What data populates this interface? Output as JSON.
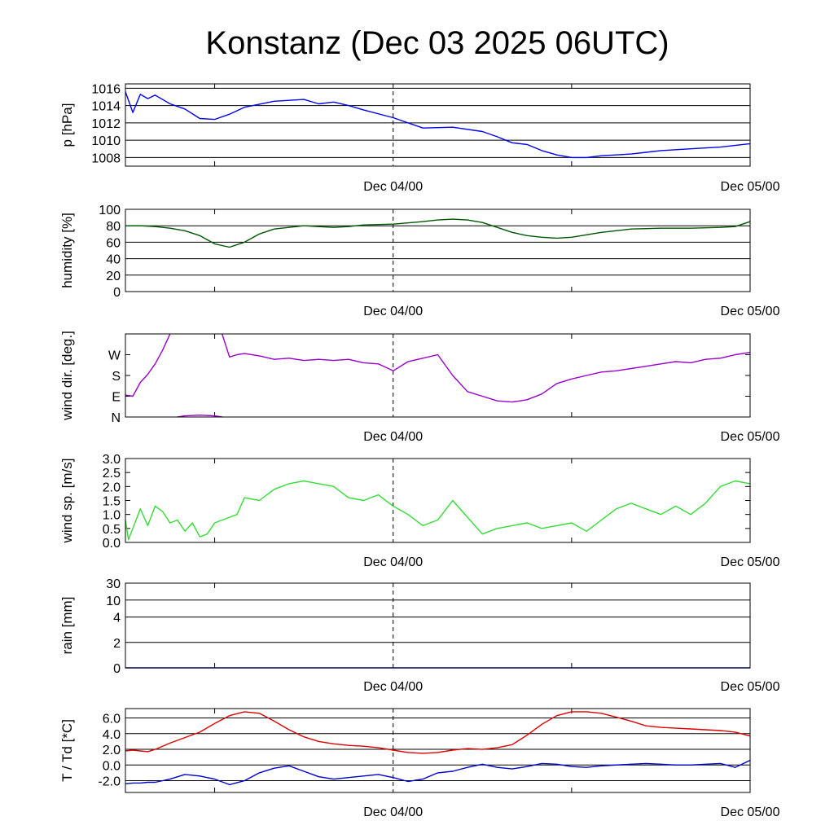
{
  "title": "Konstanz (Dec 03 2025 06UTC)",
  "x_ticks": [
    "Dec 04/00",
    "Dec 05/00"
  ],
  "chart_data": [
    {
      "type": "line",
      "ylabel": "p [hPa]",
      "ylim": [
        1007,
        1016.5
      ],
      "yticks": [
        1008,
        1010,
        1012,
        1014,
        1016
      ],
      "ytick_labels": [
        "1008",
        "1010",
        "1012",
        "1014",
        "1016"
      ],
      "grid": true,
      "x": [
        0,
        0.5,
        1,
        1.5,
        2,
        3,
        4,
        5,
        6,
        7,
        8,
        10,
        12,
        13,
        14,
        15,
        16,
        18,
        20,
        22,
        24,
        25,
        26,
        27,
        28,
        29,
        30,
        31,
        32,
        33,
        34,
        35,
        36,
        38,
        40,
        42
      ],
      "series": [
        {
          "color": "#0000ee",
          "values": [
            1015.6,
            1013.2,
            1015.3,
            1014.8,
            1015.2,
            1014.2,
            1013.6,
            1012.5,
            1012.4,
            1013.0,
            1013.8,
            1014.5,
            1014.7,
            1014.2,
            1014.4,
            1014.0,
            1013.5,
            1012.6,
            1011.4,
            1011.5,
            1011.0,
            1010.4,
            1009.7,
            1009.5,
            1008.8,
            1008.3,
            1008.0,
            1008.0,
            1008.2,
            1008.3,
            1008.4,
            1008.6,
            1008.8,
            1009.0,
            1009.2,
            1009.6
          ]
        }
      ]
    },
    {
      "type": "line",
      "ylabel": "humidity [%]",
      "ylim": [
        0,
        100
      ],
      "yticks": [
        0,
        20,
        40,
        60,
        80,
        100
      ],
      "ytick_labels": [
        "0",
        "20",
        "40",
        "60",
        "80",
        "100"
      ],
      "grid": true,
      "x": [
        0,
        1,
        2,
        3,
        4,
        5,
        6,
        7,
        8,
        9,
        10,
        12,
        14,
        15,
        16,
        18,
        20,
        21,
        22,
        23,
        24,
        25,
        26,
        27,
        28,
        29,
        30,
        31,
        32,
        34,
        36,
        38,
        40,
        41,
        42
      ],
      "series": [
        {
          "color": "#005500",
          "values": [
            80,
            80,
            79,
            77,
            74,
            68,
            58,
            54,
            60,
            70,
            76,
            80,
            78,
            79,
            81,
            82,
            85,
            87,
            88,
            87,
            84,
            78,
            72,
            68,
            66,
            65,
            66,
            69,
            72,
            76,
            77,
            77,
            78,
            79,
            85
          ]
        }
      ]
    },
    {
      "type": "line",
      "ylabel": "wind dir. [deg.]",
      "ylim": [
        0,
        360
      ],
      "yticks": [
        0,
        90,
        180,
        270
      ],
      "ytick_labels": [
        "N",
        "E",
        "S",
        "W"
      ],
      "grid": false,
      "x": [
        0,
        0.5,
        1,
        1.5,
        2,
        2.5,
        3,
        3.5,
        4,
        5,
        6,
        6.5,
        7,
        7.5,
        8,
        9,
        10,
        11,
        12,
        13,
        14,
        15,
        16,
        17,
        18,
        19,
        20,
        21,
        22,
        23,
        24,
        25,
        26,
        27,
        28,
        29,
        30,
        31,
        32,
        33,
        34,
        35,
        36,
        37,
        38,
        39,
        40,
        41,
        42
      ],
      "series": [
        {
          "color": "#9900cc",
          "values": [
            95,
            90,
            150,
            185,
            230,
            290,
            360,
            null,
            null,
            null,
            null,
            360,
            260,
            270,
            275,
            265,
            250,
            255,
            245,
            250,
            245,
            250,
            235,
            230,
            200,
            240,
            255,
            270,
            180,
            110,
            90,
            70,
            65,
            75,
            100,
            145,
            165,
            180,
            195,
            200,
            210,
            220,
            230,
            240,
            235,
            250,
            255,
            270,
            280
          ]
        },
        {
          "color": "#9900cc",
          "values": [
            null,
            null,
            null,
            null,
            null,
            null,
            null,
            0,
            5,
            8,
            5,
            0,
            null,
            null,
            null,
            null,
            null,
            null,
            null,
            null,
            null,
            null,
            null,
            null,
            null,
            null,
            null,
            null,
            null,
            null,
            null,
            null,
            null,
            null,
            null,
            null,
            null,
            null,
            null,
            null,
            null,
            null,
            null,
            null,
            null,
            null,
            null,
            null,
            null
          ]
        }
      ]
    },
    {
      "type": "line",
      "ylabel": "wind sp. [m/s]",
      "ylim": [
        0,
        3
      ],
      "yticks": [
        0,
        0.5,
        1,
        1.5,
        2,
        2.5,
        3
      ],
      "ytick_labels": [
        "0.0",
        "0.5",
        "1.0",
        "1.5",
        "2.0",
        "2.5",
        "3.0"
      ],
      "grid": false,
      "x": [
        0,
        0.2,
        0.5,
        1,
        1.5,
        2,
        2.5,
        3,
        3.5,
        4,
        4.5,
        5,
        5.5,
        6,
        6.5,
        7,
        7.5,
        8,
        9,
        10,
        11,
        12,
        13,
        14,
        15,
        16,
        17,
        18,
        19,
        20,
        21,
        22,
        23,
        24,
        25,
        26,
        27,
        28,
        29,
        30,
        31,
        32,
        33,
        34,
        35,
        36,
        37,
        38,
        39,
        40,
        41,
        42
      ],
      "series": [
        {
          "color": "#33dd33",
          "values": [
            0.8,
            0.1,
            0.5,
            1.2,
            0.6,
            1.3,
            1.1,
            0.7,
            0.8,
            0.4,
            0.7,
            0.2,
            0.3,
            0.7,
            0.8,
            0.9,
            1.0,
            1.6,
            1.5,
            1.9,
            2.1,
            2.2,
            2.1,
            2.0,
            1.6,
            1.5,
            1.7,
            1.3,
            1.0,
            0.6,
            0.8,
            1.5,
            0.9,
            0.3,
            0.5,
            0.6,
            0.7,
            0.5,
            0.6,
            0.7,
            0.4,
            0.8,
            1.2,
            1.4,
            1.2,
            1.0,
            1.3,
            1.0,
            1.4,
            2.0,
            2.2,
            2.1
          ]
        }
      ]
    },
    {
      "type": "line",
      "ylabel": "rain [mm]",
      "ylim": [
        0,
        30
      ],
      "yticks": [
        0,
        2,
        4,
        10,
        30
      ],
      "ytick_labels": [
        "0",
        "2",
        "4",
        "10",
        "30"
      ],
      "grid": true,
      "x": [
        0,
        42
      ],
      "series": [
        {
          "color": "#0000ee",
          "values": [
            0,
            0
          ]
        }
      ]
    },
    {
      "type": "line",
      "ylabel": "T / Td [*C]",
      "ylim": [
        -3.5,
        7.2
      ],
      "yticks": [
        -2,
        0,
        2,
        4,
        6
      ],
      "ytick_labels": [
        "-2.0",
        "0.0",
        "2.0",
        "4.0",
        "6.0"
      ],
      "grid": true,
      "x": [
        0,
        0.5,
        1,
        1.5,
        2,
        3,
        4,
        5,
        6,
        7,
        8,
        9,
        10,
        11,
        12,
        13,
        14,
        15,
        16,
        17,
        18,
        19,
        20,
        21,
        22,
        23,
        24,
        25,
        26,
        27,
        28,
        29,
        30,
        31,
        32,
        33,
        34,
        35,
        36,
        37,
        38,
        39,
        40,
        41,
        42
      ],
      "series": [
        {
          "color": "#dd0000",
          "values": [
            1.8,
            1.9,
            1.8,
            1.7,
            2.0,
            2.8,
            3.5,
            4.2,
            5.3,
            6.3,
            6.8,
            6.6,
            5.6,
            4.5,
            3.6,
            3.0,
            2.7,
            2.5,
            2.4,
            2.2,
            1.9,
            1.6,
            1.5,
            1.6,
            1.9,
            2.1,
            2.0,
            2.2,
            2.6,
            3.8,
            5.2,
            6.3,
            6.8,
            6.8,
            6.6,
            6.1,
            5.6,
            5.0,
            4.8,
            4.7,
            4.6,
            4.5,
            4.4,
            4.2,
            3.7
          ]
        },
        {
          "color": "#0000cc",
          "values": [
            -2.4,
            -2.3,
            -2.3,
            -2.2,
            -2.2,
            -1.8,
            -1.2,
            -1.4,
            -1.8,
            -2.5,
            -2.0,
            -1.0,
            -0.4,
            -0.1,
            -0.8,
            -1.5,
            -1.8,
            -1.6,
            -1.4,
            -1.2,
            -1.6,
            -2.1,
            -1.8,
            -1.0,
            -0.8,
            -0.3,
            0.1,
            -0.3,
            -0.5,
            -0.2,
            0.2,
            0.1,
            -0.2,
            -0.3,
            -0.1,
            0.0,
            0.1,
            0.2,
            0.1,
            0.0,
            0.0,
            0.1,
            0.2,
            -0.3,
            0.6
          ]
        }
      ]
    }
  ]
}
